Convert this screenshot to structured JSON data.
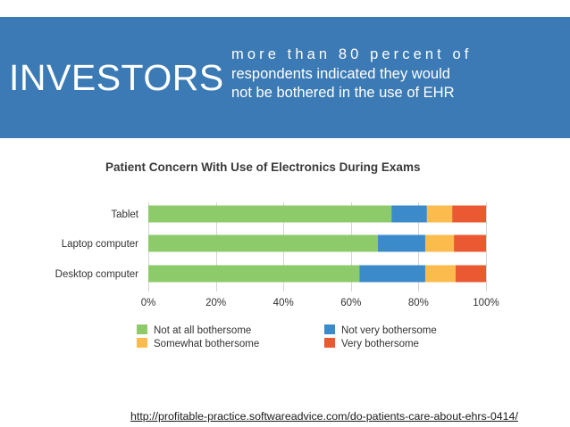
{
  "banner": {
    "headline": "INVESTORS",
    "subtext_lines": [
      "more than 80 percent of",
      "respondents indicated they would",
      "not be bothered in the use of EHR"
    ]
  },
  "chart_data": {
    "type": "bar",
    "orientation": "horizontal",
    "stacked": true,
    "title": "Patient Concern With Use of Electronics During Exams",
    "categories": [
      "Tablet",
      "Laptop computer",
      "Desktop computer"
    ],
    "series": [
      {
        "name": "Not at all bothersome",
        "color": "#8dcb6a",
        "values": [
          72,
          68,
          62.5
        ]
      },
      {
        "name": "Not very bothersome",
        "color": "#3b8ac9",
        "values": [
          10.5,
          14,
          19.5
        ]
      },
      {
        "name": "Somewhat bothersome",
        "color": "#fbbb4d",
        "values": [
          7.5,
          8.5,
          9
        ]
      },
      {
        "name": "Very bothersome",
        "color": "#ea5931",
        "values": [
          10,
          9.5,
          9
        ]
      }
    ],
    "xlim": [
      0,
      100
    ],
    "x_ticks": [
      "0%",
      "20%",
      "40%",
      "60%",
      "80%",
      "100%"
    ],
    "grid": true,
    "legend_position": "bottom"
  },
  "footer": {
    "source_url": "http://profitable-practice.softwareadvice.com/do-patients-care-about-ehrs-0414/"
  }
}
